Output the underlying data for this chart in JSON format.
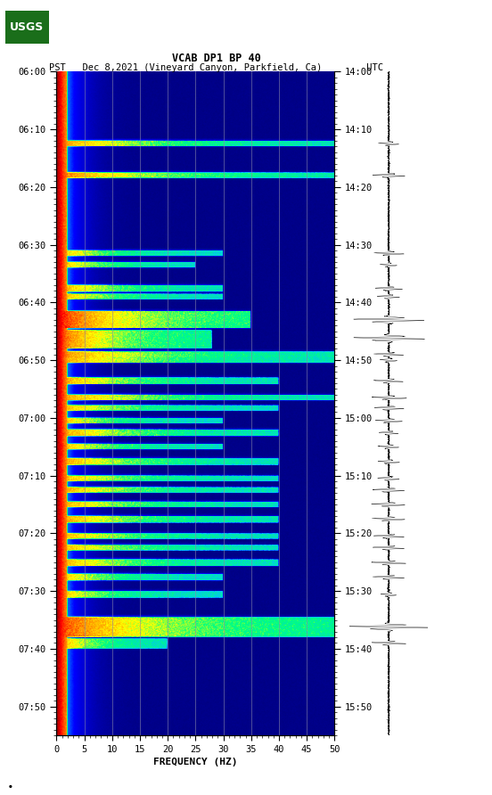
{
  "title_line1": "VCAB DP1 BP 40",
  "title_line2": "PST   Dec 8,2021 (Vineyard Canyon, Parkfield, Ca)        UTC",
  "xlabel": "FREQUENCY (HZ)",
  "freq_min": 0,
  "freq_max": 50,
  "freq_ticks": [
    0,
    5,
    10,
    15,
    20,
    25,
    30,
    35,
    40,
    45,
    50
  ],
  "freq_gridlines": [
    5,
    10,
    15,
    20,
    25,
    30,
    35,
    40,
    45
  ],
  "left_time_ticks": [
    "06:00",
    "06:10",
    "06:20",
    "06:30",
    "06:40",
    "06:50",
    "07:00",
    "07:10",
    "07:20",
    "07:30",
    "07:40",
    "07:50"
  ],
  "right_time_ticks": [
    "14:00",
    "14:10",
    "14:20",
    "14:30",
    "14:40",
    "14:50",
    "15:00",
    "15:10",
    "15:20",
    "15:30",
    "15:40",
    "15:50"
  ],
  "background_color": "#ffffff",
  "usgs_green": "#1a6e1a",
  "fig_width": 5.52,
  "fig_height": 8.92,
  "n_time": 1150,
  "n_freq": 500,
  "events": [
    {
      "t0": 120,
      "t1": 130,
      "f0": 0,
      "f1": 500,
      "amp": 0.85,
      "spread": 200
    },
    {
      "t0": 175,
      "t1": 185,
      "f0": 0,
      "f1": 500,
      "amp": 0.9,
      "spread": 200
    },
    {
      "t0": 310,
      "t1": 320,
      "f0": 0,
      "f1": 300,
      "amp": 0.8,
      "spread": 100
    },
    {
      "t0": 330,
      "t1": 340,
      "f0": 0,
      "f1": 250,
      "amp": 0.82,
      "spread": 100
    },
    {
      "t0": 370,
      "t1": 382,
      "f0": 0,
      "f1": 300,
      "amp": 0.85,
      "spread": 120
    },
    {
      "t0": 385,
      "t1": 395,
      "f0": 0,
      "f1": 300,
      "amp": 0.83,
      "spread": 100
    },
    {
      "t0": 415,
      "t1": 445,
      "f0": 0,
      "f1": 350,
      "amp": 1.0,
      "spread": 150
    },
    {
      "t0": 448,
      "t1": 480,
      "f0": 0,
      "f1": 280,
      "amp": 0.95,
      "spread": 130
    },
    {
      "t0": 485,
      "t1": 495,
      "f0": 0,
      "f1": 500,
      "amp": 0.88,
      "spread": 200
    },
    {
      "t0": 495,
      "t1": 505,
      "f0": 0,
      "f1": 500,
      "amp": 0.85,
      "spread": 200
    },
    {
      "t0": 530,
      "t1": 542,
      "f0": 0,
      "f1": 400,
      "amp": 0.85,
      "spread": 150
    },
    {
      "t0": 560,
      "t1": 570,
      "f0": 0,
      "f1": 500,
      "amp": 0.85,
      "spread": 200
    },
    {
      "t0": 578,
      "t1": 588,
      "f0": 0,
      "f1": 400,
      "amp": 0.82,
      "spread": 150
    },
    {
      "t0": 600,
      "t1": 610,
      "f0": 0,
      "f1": 300,
      "amp": 0.8,
      "spread": 100
    },
    {
      "t0": 620,
      "t1": 632,
      "f0": 0,
      "f1": 400,
      "amp": 0.85,
      "spread": 150
    },
    {
      "t0": 645,
      "t1": 655,
      "f0": 0,
      "f1": 300,
      "amp": 0.82,
      "spread": 100
    },
    {
      "t0": 670,
      "t1": 682,
      "f0": 0,
      "f1": 400,
      "amp": 0.85,
      "spread": 150
    },
    {
      "t0": 700,
      "t1": 710,
      "f0": 0,
      "f1": 400,
      "amp": 0.83,
      "spread": 150
    },
    {
      "t0": 720,
      "t1": 730,
      "f0": 0,
      "f1": 400,
      "amp": 0.85,
      "spread": 150
    },
    {
      "t0": 745,
      "t1": 755,
      "f0": 0,
      "f1": 400,
      "amp": 0.83,
      "spread": 150
    },
    {
      "t0": 770,
      "t1": 782,
      "f0": 0,
      "f1": 400,
      "amp": 0.85,
      "spread": 150
    },
    {
      "t0": 800,
      "t1": 810,
      "f0": 0,
      "f1": 400,
      "amp": 0.83,
      "spread": 150
    },
    {
      "t0": 820,
      "t1": 830,
      "f0": 0,
      "f1": 400,
      "amp": 0.83,
      "spread": 150
    },
    {
      "t0": 845,
      "t1": 857,
      "f0": 0,
      "f1": 400,
      "amp": 0.83,
      "spread": 150
    },
    {
      "t0": 870,
      "t1": 882,
      "f0": 0,
      "f1": 300,
      "amp": 0.8,
      "spread": 100
    },
    {
      "t0": 900,
      "t1": 912,
      "f0": 0,
      "f1": 300,
      "amp": 0.8,
      "spread": 100
    },
    {
      "t0": 945,
      "t1": 980,
      "f0": 0,
      "f1": 500,
      "amp": 0.95,
      "spread": 200
    },
    {
      "t0": 982,
      "t1": 1000,
      "f0": 0,
      "f1": 200,
      "amp": 0.85,
      "spread": 100
    }
  ],
  "colormap_nodes": [
    [
      0.0,
      "#000080"
    ],
    [
      0.1,
      "#0000CD"
    ],
    [
      0.2,
      "#0000FF"
    ],
    [
      0.35,
      "#00BFFF"
    ],
    [
      0.5,
      "#00FF80"
    ],
    [
      0.62,
      "#FFFF00"
    ],
    [
      0.75,
      "#FF8C00"
    ],
    [
      0.87,
      "#FF0000"
    ],
    [
      1.0,
      "#8B0000"
    ]
  ]
}
